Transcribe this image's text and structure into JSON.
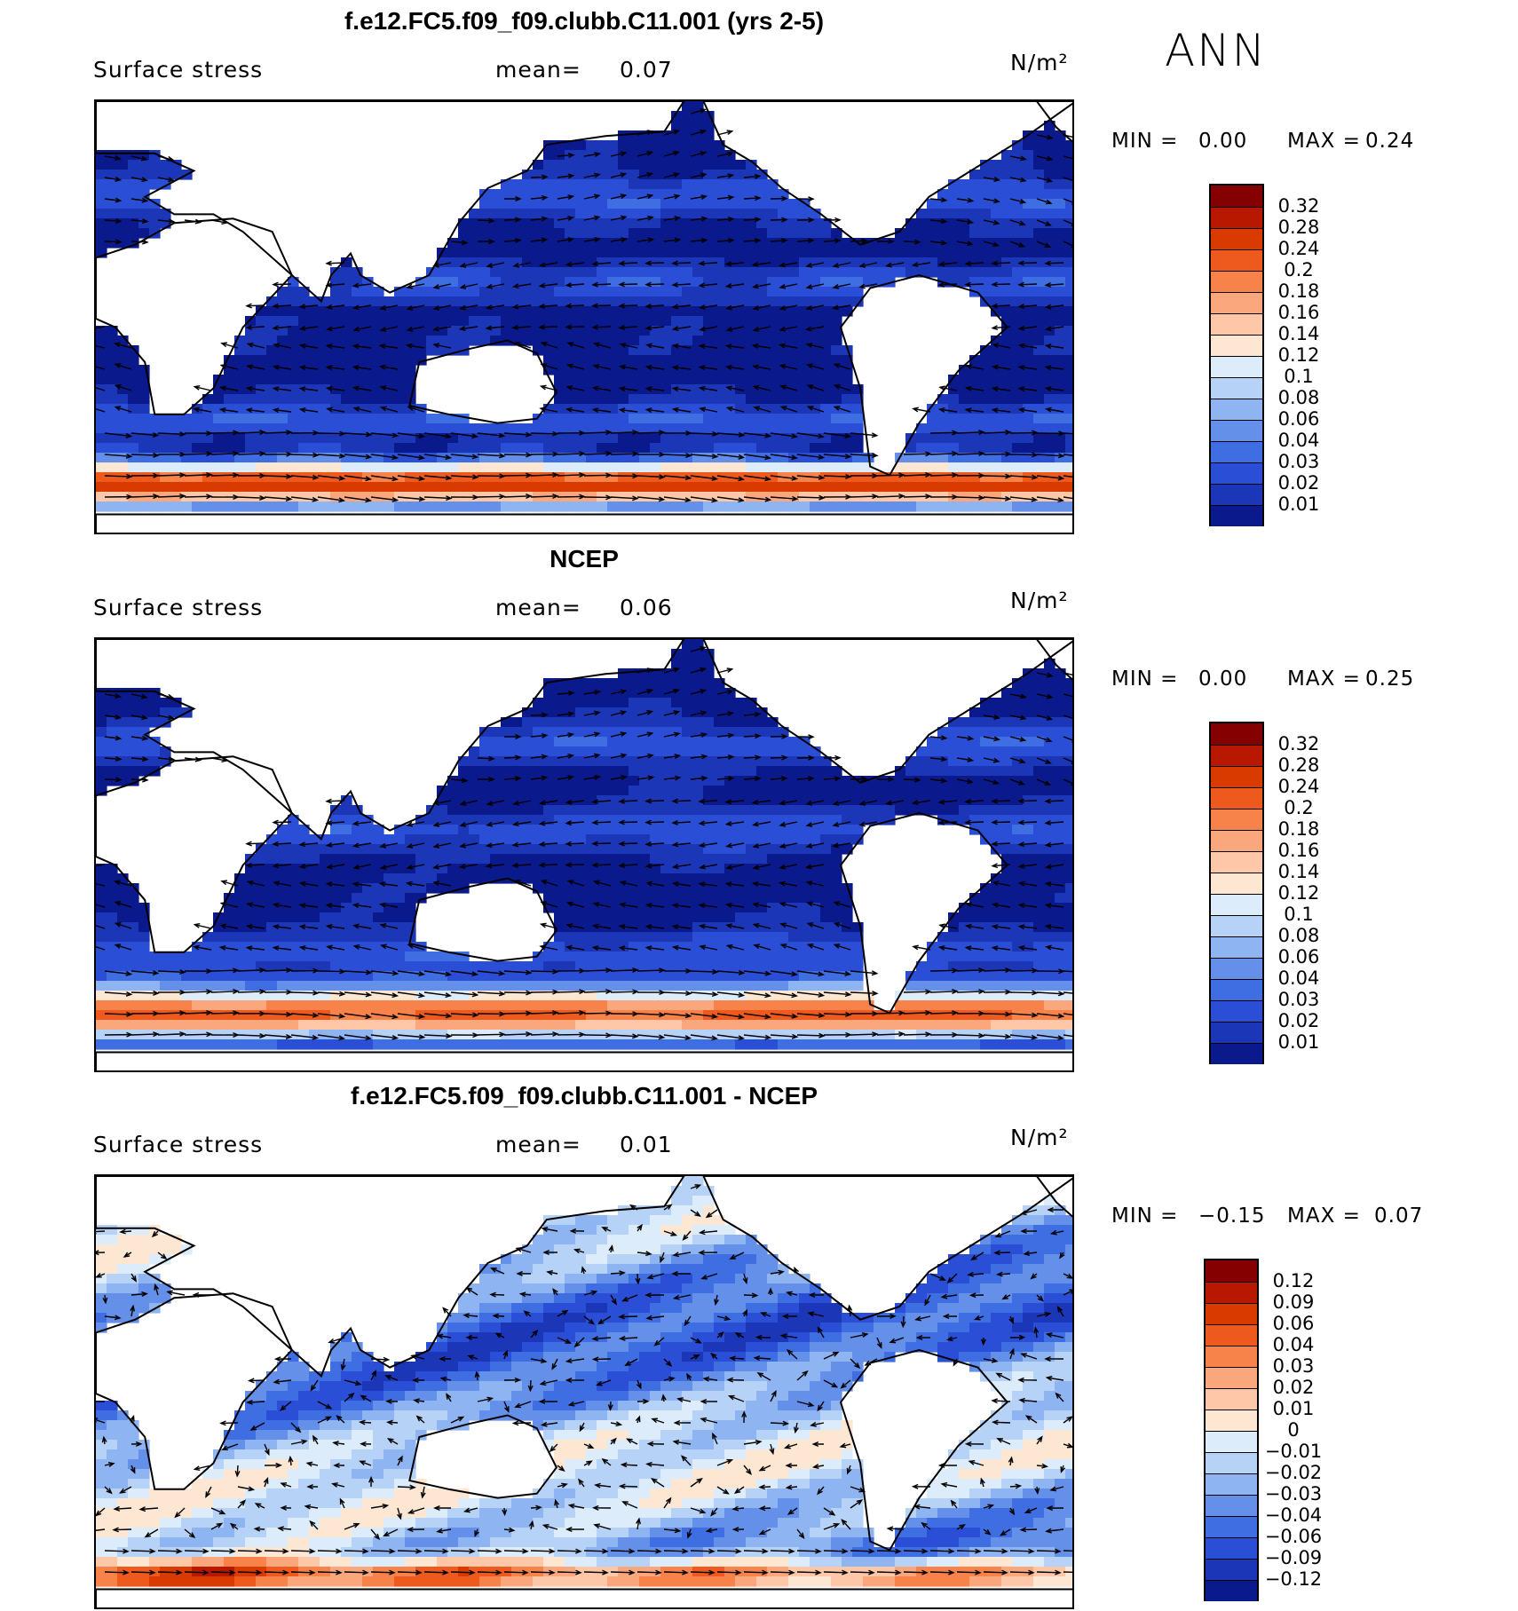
{
  "season_label": "ANN",
  "panels": [
    {
      "id": "model",
      "title": "f.e12.FC5.f09_f09.clubb.C11.001 (yrs 2-5)",
      "variable": "Surface stress",
      "mean_label": "mean=",
      "mean_value": "0.07",
      "units": "N/m²",
      "min_label": "MIN =",
      "min_value": "0.00",
      "max_label": "MAX =",
      "max_value": "0.24",
      "colorbar": {
        "labels": [
          "0.32",
          "0.28",
          "0.24",
          "0.2",
          "0.18",
          "0.16",
          "0.14",
          "0.12",
          "0.1",
          "0.08",
          "0.06",
          "0.04",
          "0.03",
          "0.02",
          "0.01"
        ],
        "colors": [
          "#850000",
          "#b81800",
          "#d83a00",
          "#ee5a1e",
          "#f7834a",
          "#fba77e",
          "#fdc7a8",
          "#fde6d2",
          "#dcecfa",
          "#b7d2f7",
          "#8fb4f2",
          "#6490ea",
          "#3f6ee2",
          "#2a4fd6",
          "#1c36b8",
          "#0a1a8c"
        ]
      }
    },
    {
      "id": "obs",
      "title": "NCEP",
      "variable": "Surface stress",
      "mean_label": "mean=",
      "mean_value": "0.06",
      "units": "N/m²",
      "min_label": "MIN =",
      "min_value": "0.00",
      "max_label": "MAX =",
      "max_value": "0.25",
      "colorbar": {
        "labels": [
          "0.32",
          "0.28",
          "0.24",
          "0.2",
          "0.18",
          "0.16",
          "0.14",
          "0.12",
          "0.1",
          "0.08",
          "0.06",
          "0.04",
          "0.03",
          "0.02",
          "0.01"
        ],
        "colors": [
          "#850000",
          "#b81800",
          "#d83a00",
          "#ee5a1e",
          "#f7834a",
          "#fba77e",
          "#fdc7a8",
          "#fde6d2",
          "#dcecfa",
          "#b7d2f7",
          "#8fb4f2",
          "#6490ea",
          "#3f6ee2",
          "#2a4fd6",
          "#1c36b8",
          "#0a1a8c"
        ]
      }
    },
    {
      "id": "diff",
      "title": "f.e12.FC5.f09_f09.clubb.C11.001 - NCEP",
      "variable": "Surface stress",
      "mean_label": "mean=",
      "mean_value": "0.01",
      "units": "N/m²",
      "min_label": "MIN =",
      "min_value": "−0.15",
      "max_label": "MAX =",
      "max_value": "0.07",
      "colorbar": {
        "labels": [
          "0.12",
          "0.09",
          "0.06",
          "0.04",
          "0.03",
          "0.02",
          "0.01",
          "0",
          "−0.01",
          "−0.02",
          "−0.03",
          "−0.04",
          "−0.06",
          "−0.09",
          "−0.12"
        ],
        "colors": [
          "#850000",
          "#b81800",
          "#d83a00",
          "#ee5a1e",
          "#f7834a",
          "#fba77e",
          "#fdc7a8",
          "#fde6d2",
          "#dcecfa",
          "#b7d2f7",
          "#8fb4f2",
          "#6490ea",
          "#3f6ee2",
          "#2a4fd6",
          "#1c36b8",
          "#0a1a8c"
        ]
      }
    }
  ]
}
